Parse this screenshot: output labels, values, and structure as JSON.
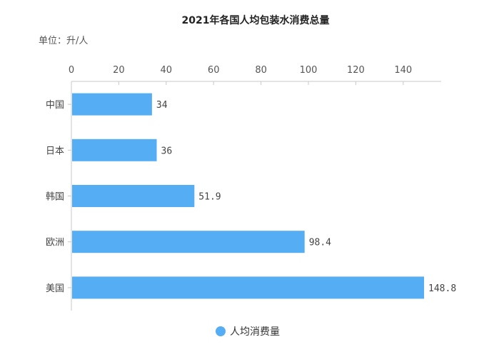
{
  "chart_data": {
    "type": "bar",
    "orientation": "horizontal",
    "title": "2021年各国人均包装水消费总量",
    "unit_label": "单位：升/人",
    "categories": [
      "中国",
      "日本",
      "韩国",
      "欧洲",
      "美国"
    ],
    "series": [
      {
        "name": "人均消费量",
        "values": [
          34,
          36,
          51.9,
          98.4,
          148.8
        ],
        "labels": [
          "34",
          "36",
          "51.9",
          "98.4",
          "148.8"
        ]
      }
    ],
    "x_ticks": [
      "0",
      "20",
      "40",
      "60",
      "80",
      "100",
      "120",
      "140"
    ],
    "xlim": [
      0,
      155
    ],
    "grid": false,
    "legend_position": "bottom-center",
    "bar_color": "#55adf4",
    "axis_color": "#c8c8c8"
  }
}
